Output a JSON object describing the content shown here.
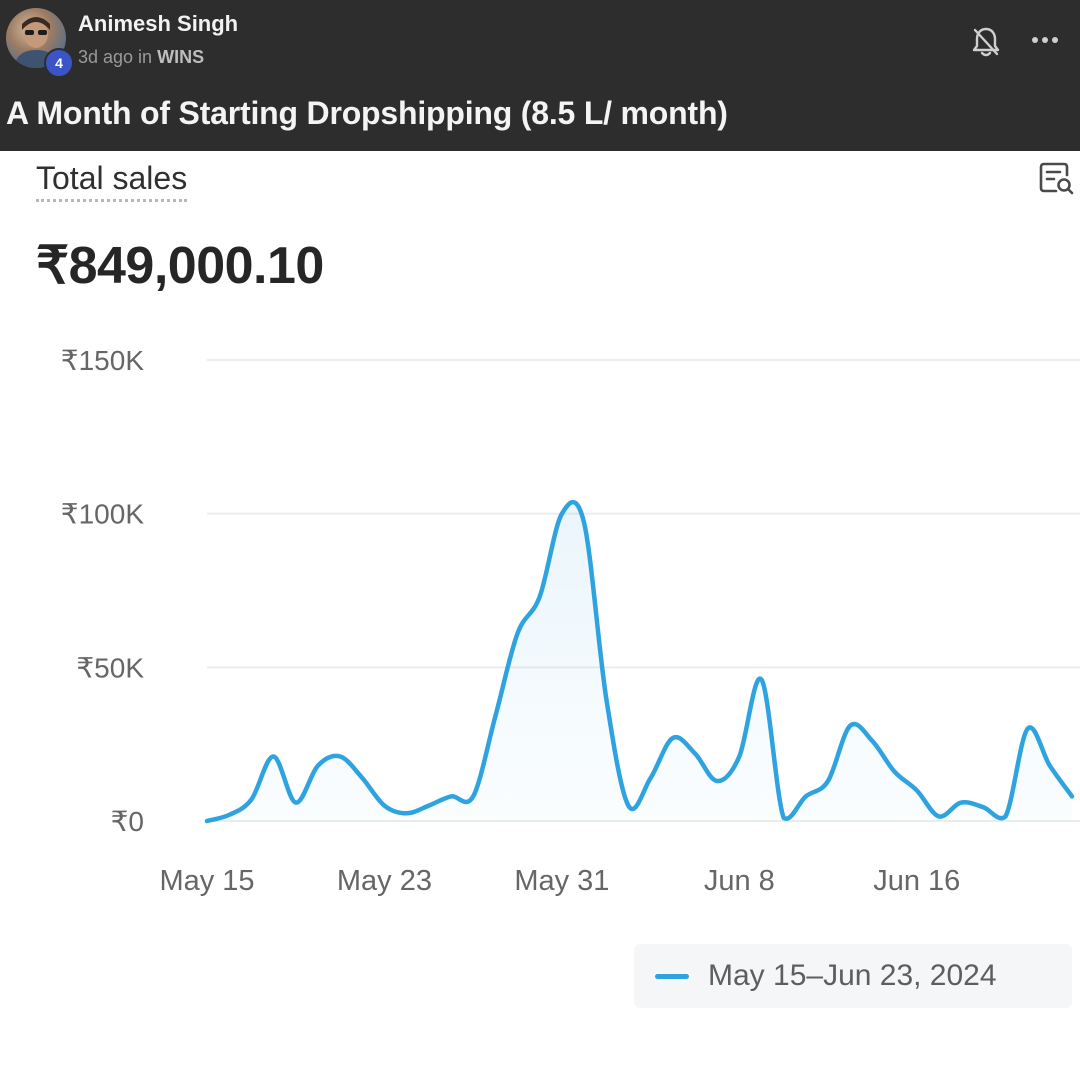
{
  "post": {
    "author_name": "Animesh Singh",
    "author_level": "4",
    "time_ago": "3d ago in",
    "space": "WINS",
    "title": "A Month of Starting Dropshipping (8.5 L/ month)"
  },
  "report": {
    "metric_label": "Total sales",
    "total_value": "₹849,000.10",
    "legend_label": "May 15–Jun 23, 2024"
  },
  "colors": {
    "header_bg": "#2d2d2d",
    "line": "#2ea3e0",
    "badge": "#3b55c6"
  },
  "icons": [
    "bell-off-icon",
    "more-icon",
    "explore-report-icon"
  ],
  "chart_data": {
    "type": "line",
    "title": "Total sales",
    "series": [
      {
        "name": "May 15–Jun 23, 2024",
        "values": [
          0,
          2000,
          7000,
          21000,
          6000,
          18000,
          21000,
          14000,
          5000,
          2500,
          5000,
          8000,
          8000,
          34000,
          61000,
          73000,
          100000,
          97000,
          40000,
          5000,
          14000,
          27000,
          22000,
          13000,
          21000,
          46000,
          1000,
          8000,
          13000,
          31000,
          26000,
          16000,
          10000,
          1500,
          6000,
          4500,
          1500,
          30000,
          18000,
          8000
        ]
      }
    ],
    "xticks": [
      {
        "index": 0,
        "label": "May 15"
      },
      {
        "index": 8,
        "label": "May 23"
      },
      {
        "index": 16,
        "label": "May 31"
      },
      {
        "index": 24,
        "label": "Jun 8"
      },
      {
        "index": 32,
        "label": "Jun 16"
      }
    ],
    "yticks": [
      {
        "value": 0,
        "label": "₹0"
      },
      {
        "value": 50000,
        "label": "₹50K"
      },
      {
        "value": 100000,
        "label": "₹100K"
      },
      {
        "value": 150000,
        "label": "₹150K"
      }
    ],
    "ylim": [
      0,
      150000
    ],
    "grid": true,
    "legend": "bottom-right"
  }
}
